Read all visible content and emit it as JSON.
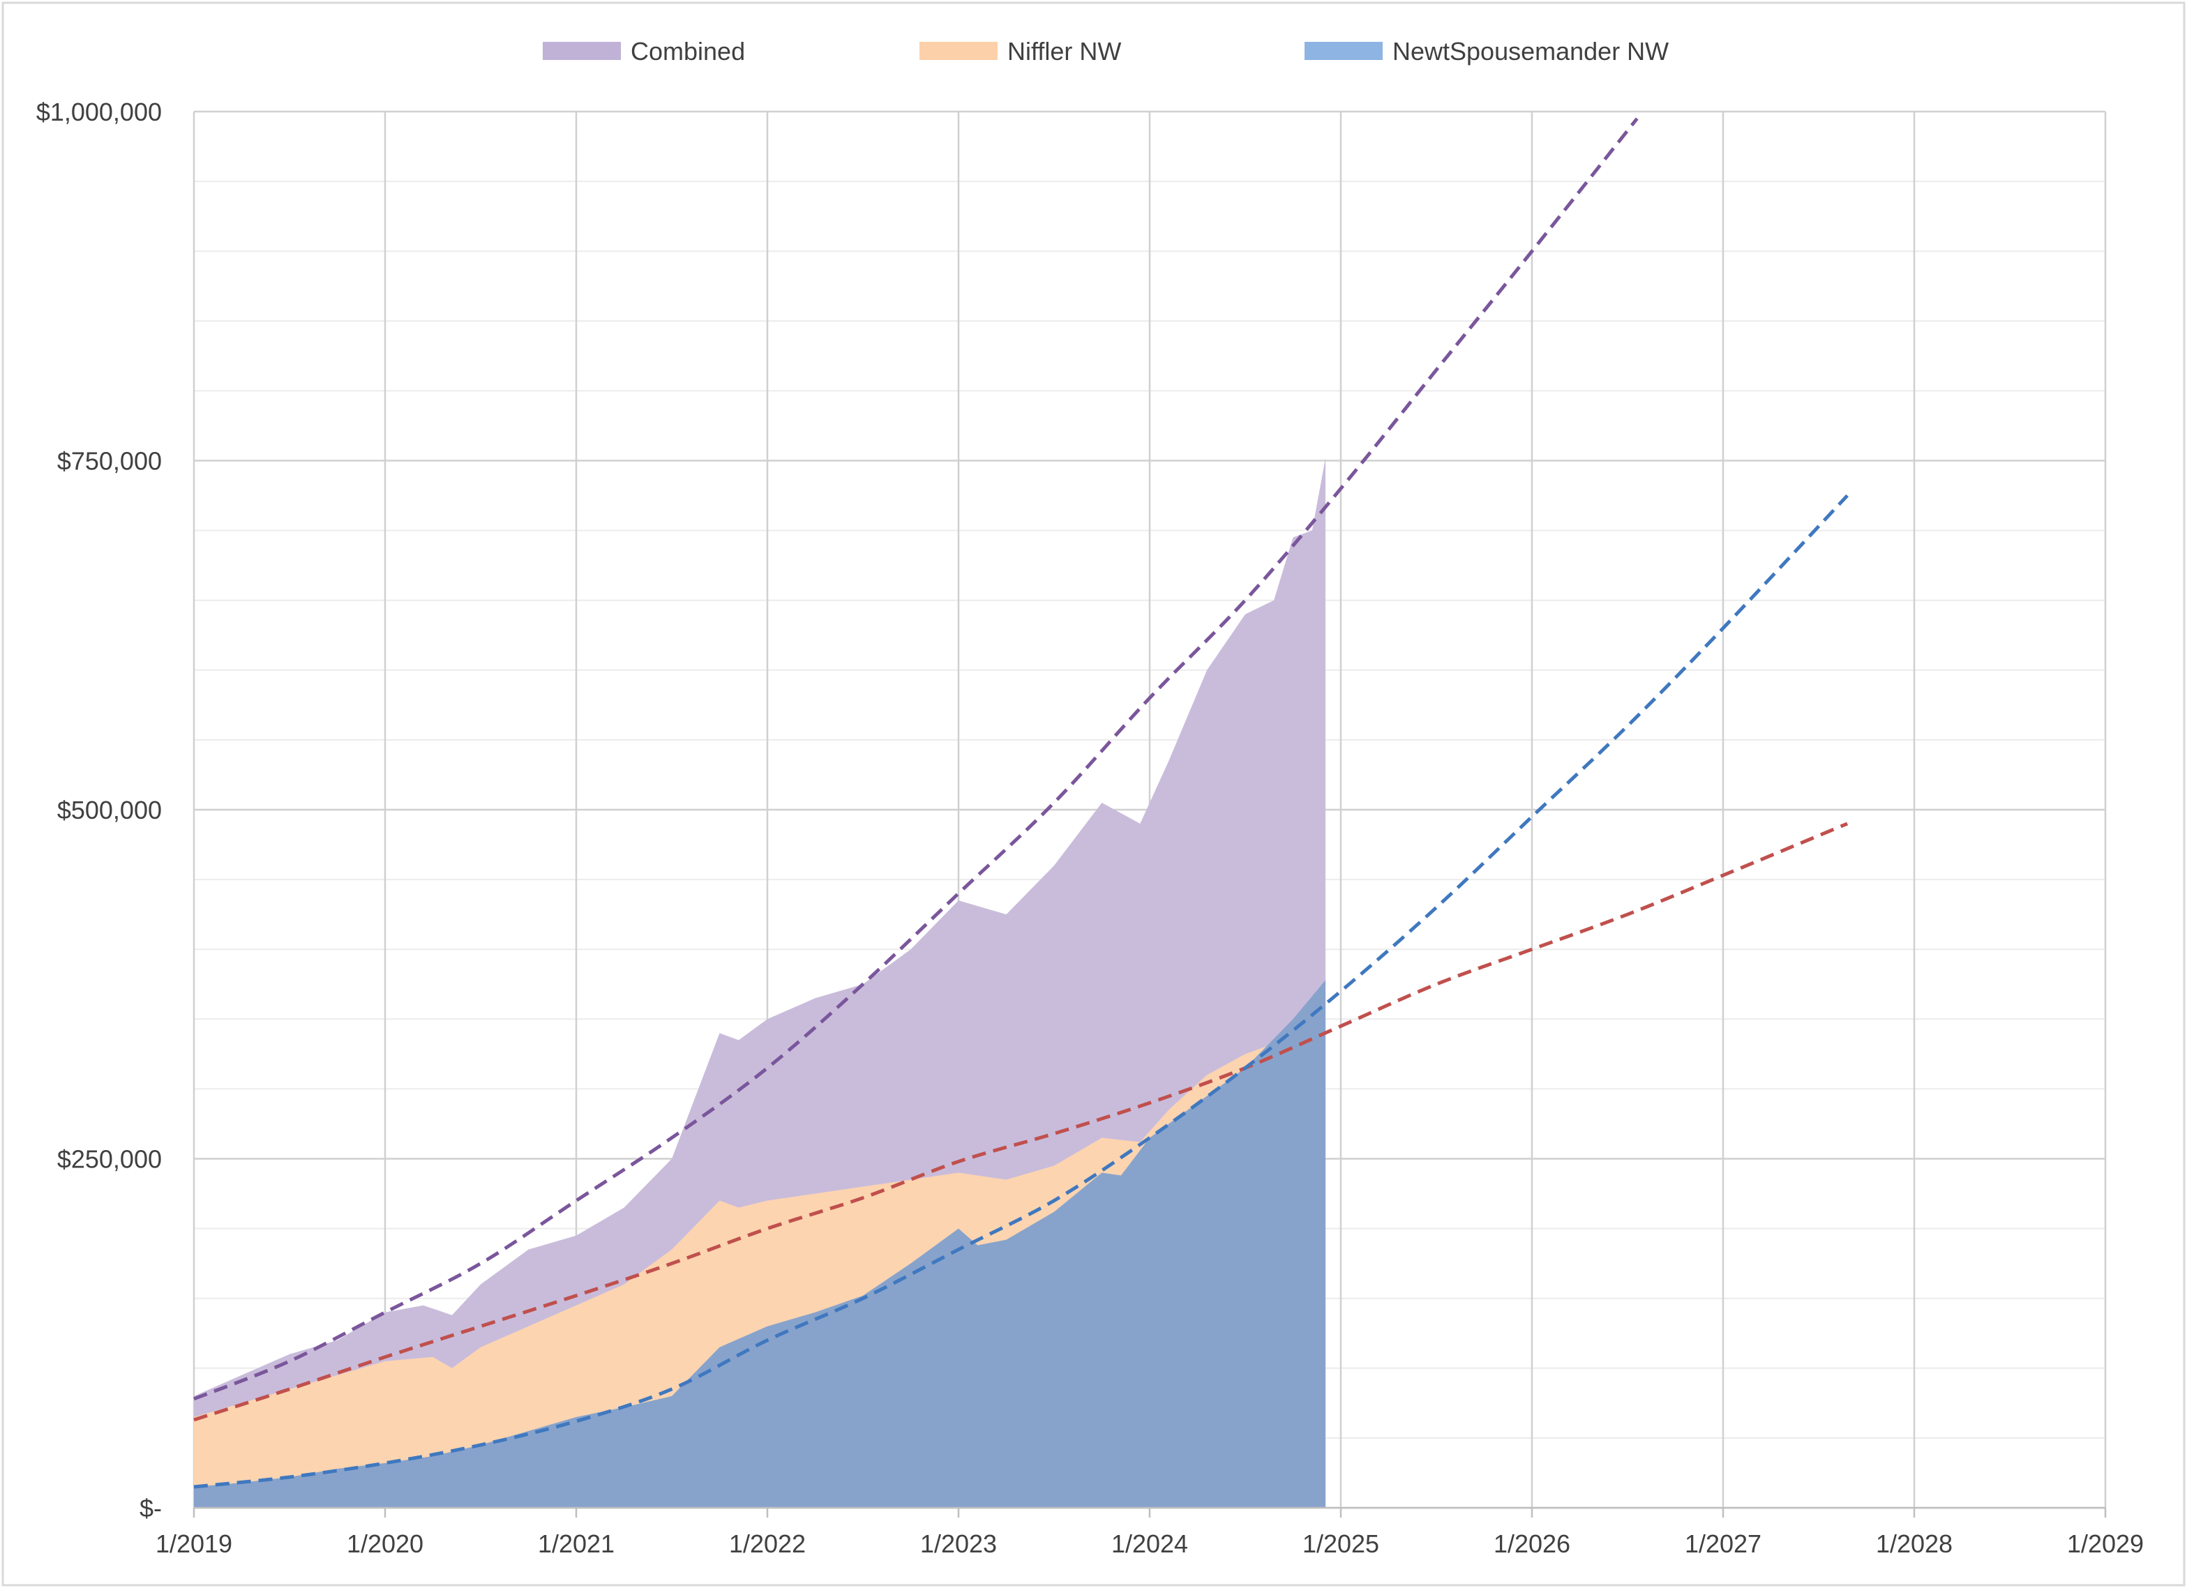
{
  "chart_data": {
    "type": "area",
    "title": "",
    "xlabel": "",
    "ylabel": "",
    "grid": true,
    "legend_position": "top",
    "xlim": [
      2019.0,
      2029.0
    ],
    "ylim": [
      0,
      1000000
    ],
    "x_tick_labels": [
      "1/2019",
      "1/2020",
      "1/2021",
      "1/2022",
      "1/2023",
      "1/2024",
      "1/2025",
      "1/2026",
      "1/2027",
      "1/2028",
      "1/2029"
    ],
    "y_tick_labels": [
      "$-",
      "$250,000",
      "$500,000",
      "$750,000",
      "$1,000,000"
    ],
    "y_minor_step": 50000,
    "series": [
      {
        "name": "Combined",
        "color": "#c9bcdb",
        "legend_color": "#c0b2d6",
        "points": [
          [
            2019.0,
            80000
          ],
          [
            2019.25,
            95000
          ],
          [
            2019.5,
            110000
          ],
          [
            2019.75,
            120000
          ],
          [
            2020.0,
            140000
          ],
          [
            2020.2,
            145000
          ],
          [
            2020.35,
            138000
          ],
          [
            2020.5,
            160000
          ],
          [
            2020.75,
            185000
          ],
          [
            2021.0,
            195000
          ],
          [
            2021.25,
            215000
          ],
          [
            2021.5,
            250000
          ],
          [
            2021.75,
            340000
          ],
          [
            2021.85,
            335000
          ],
          [
            2022.0,
            350000
          ],
          [
            2022.25,
            365000
          ],
          [
            2022.5,
            375000
          ],
          [
            2022.75,
            400000
          ],
          [
            2023.0,
            435000
          ],
          [
            2023.25,
            425000
          ],
          [
            2023.5,
            460000
          ],
          [
            2023.75,
            505000
          ],
          [
            2023.95,
            490000
          ],
          [
            2024.1,
            535000
          ],
          [
            2024.3,
            600000
          ],
          [
            2024.5,
            640000
          ],
          [
            2024.65,
            650000
          ],
          [
            2024.75,
            695000
          ],
          [
            2024.85,
            700000
          ],
          [
            2024.92,
            752000
          ]
        ]
      },
      {
        "name": "Niffler NW",
        "color": "#fcd4b0",
        "legend_color": "#fcd0a8",
        "points": [
          [
            2019.0,
            65000
          ],
          [
            2019.25,
            75000
          ],
          [
            2019.5,
            85000
          ],
          [
            2019.75,
            95000
          ],
          [
            2020.0,
            105000
          ],
          [
            2020.25,
            108000
          ],
          [
            2020.35,
            100000
          ],
          [
            2020.5,
            115000
          ],
          [
            2020.75,
            130000
          ],
          [
            2021.0,
            145000
          ],
          [
            2021.25,
            160000
          ],
          [
            2021.5,
            185000
          ],
          [
            2021.75,
            220000
          ],
          [
            2021.85,
            215000
          ],
          [
            2022.0,
            220000
          ],
          [
            2022.25,
            225000
          ],
          [
            2022.5,
            230000
          ],
          [
            2022.75,
            235000
          ],
          [
            2023.0,
            240000
          ],
          [
            2023.25,
            235000
          ],
          [
            2023.5,
            245000
          ],
          [
            2023.75,
            265000
          ],
          [
            2023.95,
            262000
          ],
          [
            2024.1,
            285000
          ],
          [
            2024.3,
            310000
          ],
          [
            2024.5,
            325000
          ],
          [
            2024.7,
            335000
          ],
          [
            2024.92,
            365000
          ]
        ]
      },
      {
        "name": "NewtSpousemander NW",
        "color": "#87a3cc",
        "legend_color": "#8eb4e3",
        "points": [
          [
            2019.0,
            15000
          ],
          [
            2019.25,
            18000
          ],
          [
            2019.5,
            22000
          ],
          [
            2019.75,
            28000
          ],
          [
            2020.0,
            32000
          ],
          [
            2020.25,
            37000
          ],
          [
            2020.5,
            45000
          ],
          [
            2020.75,
            55000
          ],
          [
            2021.0,
            65000
          ],
          [
            2021.25,
            72000
          ],
          [
            2021.5,
            80000
          ],
          [
            2021.75,
            115000
          ],
          [
            2022.0,
            130000
          ],
          [
            2022.25,
            140000
          ],
          [
            2022.5,
            152000
          ],
          [
            2022.75,
            175000
          ],
          [
            2023.0,
            200000
          ],
          [
            2023.1,
            188000
          ],
          [
            2023.25,
            192000
          ],
          [
            2023.5,
            212000
          ],
          [
            2023.75,
            240000
          ],
          [
            2023.85,
            238000
          ],
          [
            2024.0,
            265000
          ],
          [
            2024.25,
            290000
          ],
          [
            2024.5,
            315000
          ],
          [
            2024.75,
            350000
          ],
          [
            2024.92,
            378000
          ]
        ]
      }
    ],
    "trendlines": [
      {
        "series": "Combined",
        "color": "#7a569b",
        "points": [
          [
            2019.0,
            78000
          ],
          [
            2019.5,
            105000
          ],
          [
            2020.0,
            140000
          ],
          [
            2020.5,
            175000
          ],
          [
            2021.0,
            220000
          ],
          [
            2021.5,
            265000
          ],
          [
            2022.0,
            315000
          ],
          [
            2022.5,
            375000
          ],
          [
            2023.0,
            440000
          ],
          [
            2023.5,
            505000
          ],
          [
            2024.0,
            580000
          ],
          [
            2024.5,
            650000
          ],
          [
            2025.0,
            730000
          ],
          [
            2025.5,
            815000
          ],
          [
            2026.0,
            900000
          ],
          [
            2026.55,
            995000
          ]
        ]
      },
      {
        "series": "Niffler NW",
        "color": "#c0504d",
        "points": [
          [
            2019.0,
            63000
          ],
          [
            2019.5,
            85000
          ],
          [
            2020.0,
            108000
          ],
          [
            2020.5,
            130000
          ],
          [
            2021.0,
            152000
          ],
          [
            2021.5,
            175000
          ],
          [
            2022.0,
            200000
          ],
          [
            2022.5,
            222000
          ],
          [
            2023.0,
            248000
          ],
          [
            2023.5,
            268000
          ],
          [
            2024.0,
            290000
          ],
          [
            2024.5,
            315000
          ],
          [
            2025.0,
            345000
          ],
          [
            2025.5,
            375000
          ],
          [
            2026.0,
            400000
          ],
          [
            2026.5,
            425000
          ],
          [
            2027.0,
            453000
          ],
          [
            2027.65,
            490000
          ]
        ]
      },
      {
        "series": "NewtSpousemander NW",
        "color": "#3f78bf",
        "points": [
          [
            2019.0,
            15000
          ],
          [
            2019.5,
            22000
          ],
          [
            2020.0,
            32000
          ],
          [
            2020.5,
            45000
          ],
          [
            2021.0,
            62000
          ],
          [
            2021.5,
            85000
          ],
          [
            2022.0,
            120000
          ],
          [
            2022.5,
            150000
          ],
          [
            2023.0,
            185000
          ],
          [
            2023.5,
            220000
          ],
          [
            2024.0,
            265000
          ],
          [
            2024.5,
            315000
          ],
          [
            2025.0,
            370000
          ],
          [
            2025.5,
            430000
          ],
          [
            2026.0,
            495000
          ],
          [
            2026.5,
            560000
          ],
          [
            2027.0,
            630000
          ],
          [
            2027.65,
            725000
          ]
        ]
      }
    ]
  }
}
